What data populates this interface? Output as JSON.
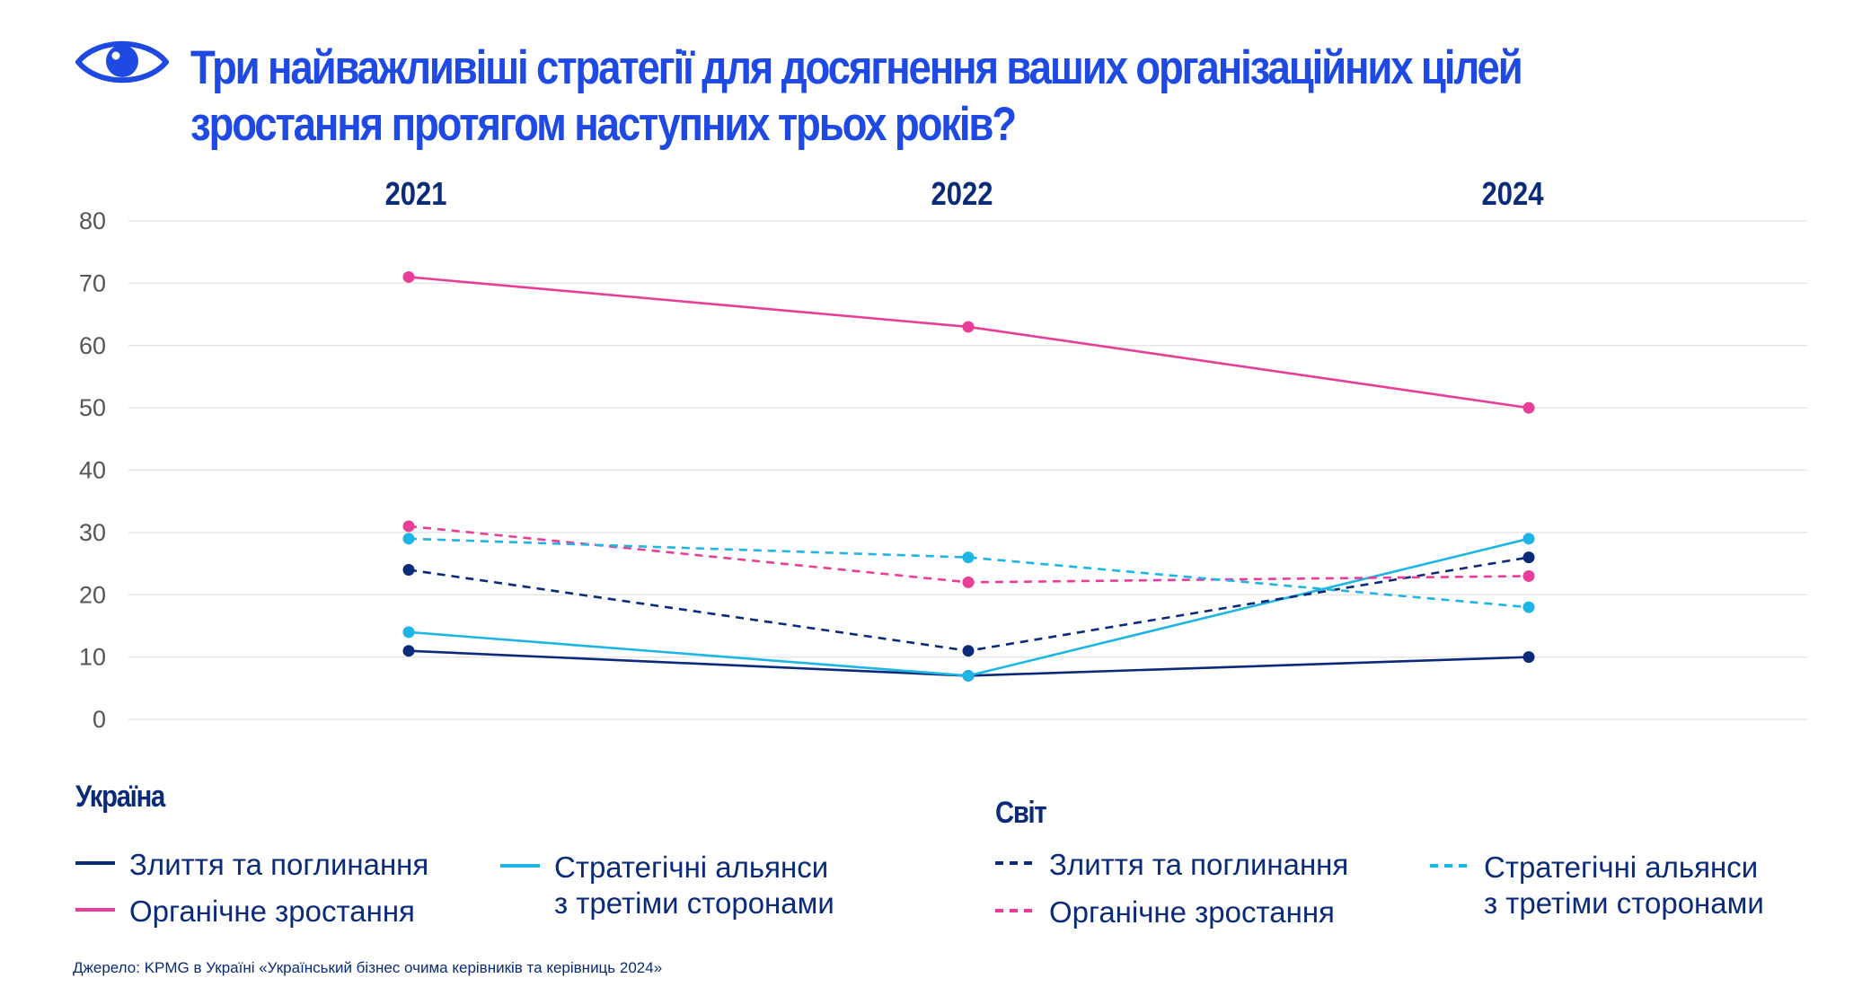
{
  "title": "Три найважливіші стратегії  для досягнення ваших організаційних цілей зростання протягом наступних трьох років?",
  "icon": "eye-icon",
  "colors": {
    "title": "#1E49E2",
    "text": "#0A2A7A",
    "navy": "#0C2A7A",
    "pink": "#E83E98",
    "cyan": "#1DB5E3",
    "grid": "#E6E6E6",
    "axis": "#555555"
  },
  "chart_data": {
    "type": "line",
    "categories": [
      "2021",
      "2022",
      "2024"
    ],
    "ylim": [
      0,
      80
    ],
    "yticks": [
      0,
      10,
      20,
      30,
      40,
      50,
      60,
      70,
      80
    ],
    "grid": true,
    "series": [
      {
        "name": "Злиття та поглинання",
        "group": "Україна",
        "color": "#0C2A7A",
        "dashed": false,
        "values": [
          11,
          7,
          10
        ]
      },
      {
        "name": "Органічне зростання",
        "group": "Україна",
        "color": "#E83E98",
        "dashed": false,
        "values": [
          71,
          63,
          50
        ]
      },
      {
        "name": "Стратегічні альянси\nз третіми сторонами",
        "group": "Україна",
        "color": "#1DB5E3",
        "dashed": false,
        "values": [
          14,
          7,
          29
        ]
      },
      {
        "name": "Злиття та поглинання",
        "group": "Світ",
        "color": "#0C2A7A",
        "dashed": true,
        "values": [
          24,
          11,
          26
        ]
      },
      {
        "name": "Органічне зростання",
        "group": "Світ",
        "color": "#E83E98",
        "dashed": true,
        "values": [
          31,
          22,
          23
        ]
      },
      {
        "name": "Стратегічні альянси\nз третіми сторонами",
        "group": "Світ",
        "color": "#1DB5E3",
        "dashed": true,
        "values": [
          29,
          26,
          18
        ]
      }
    ]
  },
  "legend": {
    "ukraine_title": "Україна",
    "world_title": "Світ"
  },
  "source": "Джерело: KPMG в Україні «Український бізнес очима керівників та керівниць 2024»"
}
